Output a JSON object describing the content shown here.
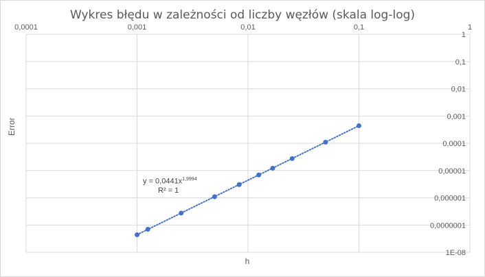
{
  "chart_data": {
    "type": "scatter",
    "title": "Wykres błędu w zależności od liczby węzłów (skala log-log)",
    "xlabel": "h",
    "ylabel": "Error",
    "x_scale": "log",
    "y_scale": "log",
    "xlim": [
      0.0001,
      1
    ],
    "ylim": [
      1e-08,
      1
    ],
    "x_axis_position": "top",
    "y_axis_position": "right",
    "grid": "vertical and horizontal major gridlines",
    "x_tick_labels": [
      "0,0001",
      "0,001",
      "0,01",
      "0,1",
      "1"
    ],
    "y_tick_labels": [
      "1",
      "0,1",
      "0,01",
      "0,001",
      "0,0001",
      "0,00001",
      "0,000001",
      "0,0000001",
      "1E-08"
    ],
    "point_color": "#4472c4",
    "series": [
      {
        "x": [
          0.001,
          0.00125,
          0.0025,
          0.005,
          0.00833,
          0.0125,
          0.0167,
          0.025,
          0.05,
          0.1
        ],
        "y": [
          4.4e-08,
          7e-08,
          2.75e-07,
          1.1e-06,
          3.05e-06,
          6.9e-06,
          1.22e-05,
          2.75e-05,
          0.00011,
          0.00044
        ]
      }
    ],
    "trendline": {
      "type": "power",
      "style": "dotted",
      "color": "#4472c4",
      "coefficient": 0.0441,
      "exponent": 1.9994,
      "equation_prefix": "y = 0,0441x",
      "equation_exponent": "1,9994",
      "r_squared_label": "R² = 1"
    }
  }
}
